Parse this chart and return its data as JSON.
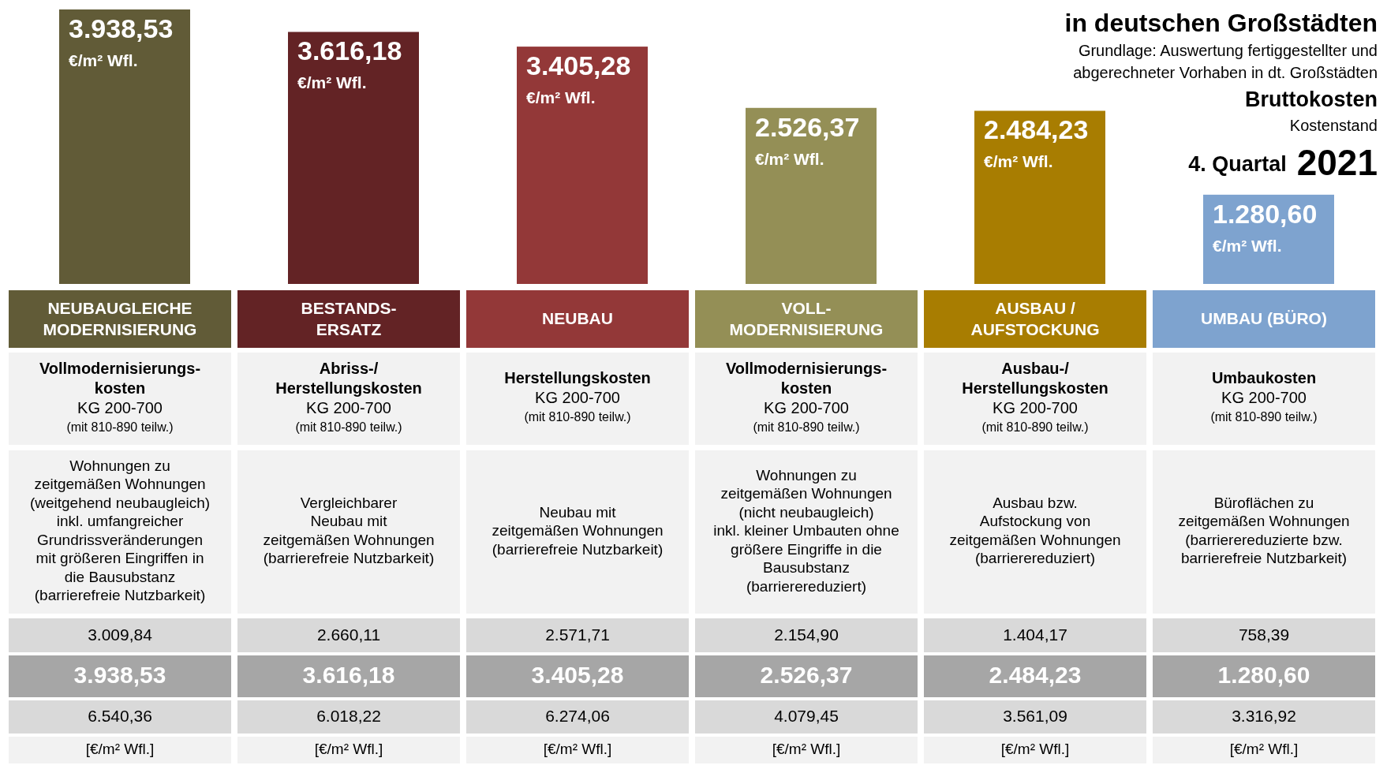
{
  "chart_data": {
    "type": "bar",
    "title": "in deutschen Großstädten",
    "subtitle": "Grundlage: Auswertung fertiggestellter und\nabgerechneter Vorhaben in dt. Großstädten",
    "ylabel": "€/m² Wfl.",
    "categories": [
      "NEUBAUGLEICHE\nMODERNISIERUNG",
      "BESTANDS-\nERSATZ",
      "NEUBAU",
      "VOLL-\nMODERNISIERUNG",
      "AUSBAU /\nAUFSTOCKUNG",
      "UMBAU (BÜRO)"
    ],
    "values": [
      3938.53,
      3616.18,
      3405.28,
      2526.37,
      2484.23,
      1280.6
    ],
    "colors": [
      "#615b37",
      "#632325",
      "#933838",
      "#948f56",
      "#a87d01",
      "#7ea3cf"
    ],
    "value_labels": [
      "3.938,53",
      "3.616,18",
      "3.405,28",
      "2.526,37",
      "2.484,23",
      "1.280,60"
    ],
    "annotations": [
      "Bruttokosten",
      "Kostenstand",
      "4. Quartal",
      "2021",
      "Vollmodernisierungs-\nkosten",
      "KG 200-700",
      "(mit 810-890 teilw.)",
      "Wohnungen zu\nzeitgemäßen Wohnungen\n(weitgehend neubaugleich)\ninkl. umfangreicher\nGrundrissveränderungen\nmit größeren Eingriffen in\ndie Bausubstanz\n(barrierefreie Nutzbarkeit)",
      "3.009,84",
      "6.540,36",
      "[€/m² Wfl.]",
      "Abriss-/\nHerstellungskosten",
      "KG 200-700",
      "(mit 810-890 teilw.)",
      "Vergleichbarer\nNeubau mit\nzeitgemäßen Wohnungen\n(barrierefreie Nutzbarkeit)",
      "2.660,11",
      "6.018,22",
      "[€/m² Wfl.]",
      "Herstellungskosten",
      "KG 200-700",
      "(mit 810-890 teilw.)",
      "Neubau mit\nzeitgemäßen Wohnungen\n(barrierefreie Nutzbarkeit)",
      "2.571,71",
      "6.274,06",
      "[€/m² Wfl.]",
      "Vollmodernisierungs-\nkosten",
      "KG 200-700",
      "(mit 810-890 teilw.)",
      "Wohnungen zu\nzeitgemäßen Wohnungen\n(nicht neubaugleich)\ninkl. kleiner Umbauten ohne\ngrößere Eingriffe in die\nBausubstanz\n(barrierereduziert)",
      "2.154,90",
      "4.079,45",
      "[€/m² Wfl.]",
      "Ausbau-/\nHerstellungskosten",
      "KG 200-700",
      "(mit 810-890 teilw.)",
      "Ausbau bzw.\nAufstockung von\nzeitgemäßen Wohnungen\n(barrierereduziert)",
      "1.404,17",
      "3.561,09",
      "[€/m² Wfl.]",
      "Umbaukosten",
      "KG 200-700",
      "(mit 810-890 teilw.)",
      "Büroflächen zu\nzeitgemäßen Wohnungen\n(barrierereduzierte bzw.\nbarrierefreie Nutzbarkeit)",
      "758,39",
      "3.316,92",
      "[€/m² Wfl.]"
    ]
  }
}
